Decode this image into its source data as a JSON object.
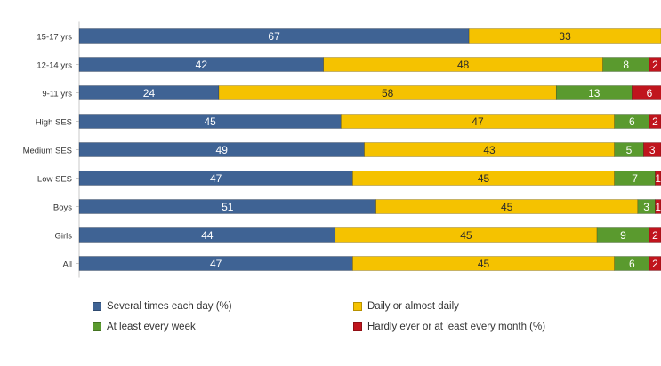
{
  "chart_data": {
    "type": "bar",
    "orientation": "horizontal",
    "stacked": true,
    "categories": [
      "15-17 yrs",
      "12-14 yrs",
      "9-11 yrs",
      "High SES",
      "Medium SES",
      "Low SES",
      "Boys",
      "Girls",
      "All"
    ],
    "series": [
      {
        "name": "Several times each day (%)",
        "color": "#3f6394",
        "values": [
          67,
          42,
          24,
          45,
          49,
          47,
          51,
          44,
          47
        ]
      },
      {
        "name": "Daily or almost daily",
        "color": "#f5c200",
        "values": [
          33,
          48,
          58,
          47,
          43,
          45,
          45,
          45,
          45
        ]
      },
      {
        "name": "At least every week",
        "color": "#5a9a2e",
        "values": [
          0,
          8,
          13,
          6,
          5,
          7,
          3,
          9,
          6
        ]
      },
      {
        "name": "Hardly ever or at least every month (%)",
        "color": "#c0151d",
        "values": [
          0,
          2,
          6,
          2,
          3,
          1,
          1,
          2,
          2
        ]
      }
    ],
    "data_labels": [
      [
        "67",
        "33",
        "",
        ""
      ],
      [
        "42",
        "48",
        "8",
        "2"
      ],
      [
        "24",
        "58",
        "13",
        "6"
      ],
      [
        "45",
        "47",
        "6",
        "2"
      ],
      [
        "49",
        "43",
        "5",
        "3"
      ],
      [
        "47",
        "45",
        "7",
        "1"
      ],
      [
        "51",
        "45",
        "3",
        "1"
      ],
      [
        "44",
        "45",
        "9",
        "2"
      ],
      [
        "47",
        "45",
        "6",
        "2"
      ]
    ],
    "xlim": [
      0,
      100
    ],
    "grid": false,
    "legend_position": "bottom"
  }
}
